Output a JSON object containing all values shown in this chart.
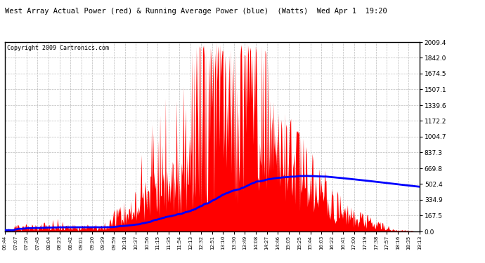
{
  "title": "West Array Actual Power (red) & Running Average Power (blue)  (Watts)  Wed Apr 1  19:20",
  "copyright": "Copyright 2009 Cartronics.com",
  "y_ticks": [
    0.0,
    167.5,
    334.9,
    502.4,
    669.8,
    837.3,
    1004.7,
    1172.2,
    1339.6,
    1507.1,
    1674.5,
    1842.0,
    2009.4
  ],
  "x_labels": [
    "06:44",
    "07:07",
    "07:26",
    "07:45",
    "08:04",
    "08:23",
    "08:42",
    "09:01",
    "09:20",
    "09:39",
    "09:59",
    "10:18",
    "10:37",
    "10:56",
    "11:15",
    "11:35",
    "11:54",
    "12:13",
    "12:32",
    "12:51",
    "13:10",
    "13:30",
    "13:49",
    "14:08",
    "14:27",
    "14:46",
    "15:05",
    "15:25",
    "15:44",
    "16:03",
    "16:22",
    "16:41",
    "17:00",
    "17:19",
    "17:38",
    "17:57",
    "18:16",
    "18:35",
    "19:13"
  ],
  "y_max": 2009.4,
  "y_min": 0.0,
  "bg_color": "#ffffff",
  "plot_bg": "#ffffff",
  "grid_color": "#aaaaaa",
  "red_color": "#ff0000",
  "blue_color": "#0000ff",
  "title_color": "#000000",
  "title_bg_color": "#000000"
}
